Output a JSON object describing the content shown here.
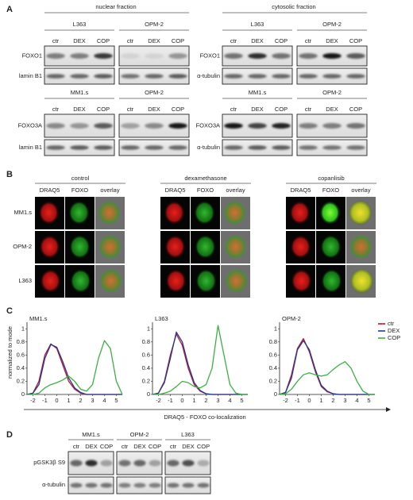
{
  "panel_a": {
    "label": "A",
    "fractions": [
      {
        "title": "nuclear fraction",
        "rows": [
          {
            "cell_lines": [
              "L363",
              "OPM-2"
            ],
            "lanes": [
              [
                "ctr",
                "DEX",
                "COP"
              ],
              [
                "ctr",
                "DEX",
                "COP"
              ]
            ],
            "proteins": [
              "FOXO1",
              "lamin B1"
            ]
          },
          {
            "cell_lines": [
              "MM1.s",
              "OPM-2"
            ],
            "lanes": [
              [
                "ctr",
                "DEX",
                "COP"
              ],
              [
                "ctr",
                "DEX",
                "COP"
              ]
            ],
            "proteins": [
              "FOXO3A",
              "lamin B1"
            ]
          }
        ]
      },
      {
        "title": "cytosolic fraction",
        "rows": [
          {
            "cell_lines": [
              "L363",
              "OPM-2"
            ],
            "lanes": [
              [
                "ctr",
                "DEX",
                "COP"
              ],
              [
                "ctr",
                "DEX",
                "COP"
              ]
            ],
            "proteins": [
              "FOXO1",
              "α-tubulin"
            ]
          },
          {
            "cell_lines": [
              "MM1.s",
              "OPM-2"
            ],
            "lanes": [
              [
                "ctr",
                "DEX",
                "COP"
              ],
              [
                "ctr",
                "DEX",
                "COP"
              ]
            ],
            "proteins": [
              "FOXO3A",
              "α-tubulin"
            ]
          }
        ]
      }
    ]
  },
  "panel_b": {
    "label": "B",
    "conditions": [
      {
        "title": "control",
        "channels": [
          "DRAQ5",
          "FOXO",
          "overlay"
        ]
      },
      {
        "title": "dexamethasone",
        "channels": [
          "DRAQ5",
          "FOXO",
          "overlay"
        ]
      },
      {
        "title": "copanlisib",
        "channels": [
          "DRAQ5",
          "FOXO",
          "overlay"
        ]
      }
    ],
    "cell_lines": [
      "MM1.s",
      "OPM-2",
      "L363"
    ]
  },
  "panel_c": {
    "label": "C",
    "y_label": "normalized to mode",
    "x_label": "DRAQ5 - FOXO co-localization"
  },
  "chart_data": [
    {
      "type": "line",
      "title": "MM1.s",
      "x": [
        -2.5,
        -2,
        -1.5,
        -1,
        -0.5,
        0,
        0.5,
        1,
        1.5,
        2,
        2.5,
        3,
        3.5,
        4,
        4.5,
        5,
        5.5
      ],
      "xlim": [
        -2.5,
        5.5
      ],
      "xticks": [
        -2,
        -1,
        0,
        1,
        2,
        3,
        4,
        5
      ],
      "ylim": [
        0,
        1.1
      ],
      "yticks": [
        0,
        0.2,
        0.4,
        0.6,
        0.8,
        1
      ],
      "series": [
        {
          "color": "#c8102e",
          "values": [
            0,
            0.02,
            0.2,
            0.6,
            0.77,
            0.7,
            0.45,
            0.2,
            0.08,
            0.02,
            0,
            0,
            0,
            0,
            0,
            0,
            0
          ]
        },
        {
          "color": "#1f3a93",
          "values": [
            0,
            0.02,
            0.15,
            0.55,
            0.76,
            0.72,
            0.5,
            0.25,
            0.1,
            0.03,
            0,
            0,
            0,
            0,
            0,
            0,
            0
          ]
        },
        {
          "color": "#3cb043",
          "values": [
            0,
            0,
            0.02,
            0.1,
            0.15,
            0.18,
            0.22,
            0.28,
            0.2,
            0.08,
            0.05,
            0.15,
            0.55,
            0.82,
            0.7,
            0.2,
            0
          ]
        }
      ]
    },
    {
      "type": "line",
      "title": "L363",
      "x": [
        -2.5,
        -2,
        -1.5,
        -1,
        -0.5,
        0,
        0.5,
        1,
        1.5,
        2,
        2.5,
        3,
        3.5,
        4,
        4.5,
        5,
        5.5
      ],
      "xlim": [
        -2.5,
        5.5
      ],
      "xticks": [
        -2,
        -1,
        0,
        1,
        2,
        3,
        4,
        5
      ],
      "ylim": [
        0,
        1.1
      ],
      "yticks": [
        0,
        0.2,
        0.4,
        0.6,
        0.8,
        1
      ],
      "series": [
        {
          "color": "#c8102e",
          "values": [
            0,
            0.02,
            0.2,
            0.6,
            0.92,
            0.75,
            0.4,
            0.15,
            0.05,
            0.01,
            0,
            0,
            0,
            0,
            0,
            0,
            0
          ]
        },
        {
          "color": "#1f3a93",
          "values": [
            0,
            0.02,
            0.18,
            0.55,
            0.95,
            0.8,
            0.45,
            0.18,
            0.06,
            0.01,
            0,
            0,
            0,
            0,
            0,
            0,
            0
          ]
        },
        {
          "color": "#3cb043",
          "values": [
            0,
            0,
            0.02,
            0.05,
            0.12,
            0.2,
            0.18,
            0.12,
            0.1,
            0.15,
            0.4,
            1.05,
            0.6,
            0.15,
            0.02,
            0,
            0
          ]
        }
      ]
    },
    {
      "type": "line",
      "title": "OPM-2",
      "x": [
        -2.5,
        -2,
        -1.5,
        -1,
        -0.5,
        0,
        0.5,
        1,
        1.5,
        2,
        2.5,
        3,
        3.5,
        4,
        4.5,
        5,
        5.5
      ],
      "xlim": [
        -2.5,
        5.5
      ],
      "xticks": [
        -2,
        -1,
        0,
        1,
        2,
        3,
        4,
        5
      ],
      "ylim": [
        0,
        1.1
      ],
      "yticks": [
        0,
        0.2,
        0.4,
        0.6,
        0.8,
        1
      ],
      "legend": "upper right",
      "series": [
        {
          "name": "ctr",
          "color": "#c8102e",
          "values": [
            0,
            0.03,
            0.3,
            0.7,
            0.85,
            0.65,
            0.35,
            0.12,
            0.04,
            0.01,
            0,
            0,
            0,
            0,
            0,
            0,
            0
          ]
        },
        {
          "name": "DEX",
          "color": "#1f3a93",
          "values": [
            0,
            0.03,
            0.25,
            0.68,
            0.82,
            0.68,
            0.38,
            0.14,
            0.05,
            0.01,
            0,
            0,
            0,
            0,
            0,
            0,
            0
          ]
        },
        {
          "name": "COP",
          "color": "#3cb043",
          "values": [
            0,
            0.01,
            0.08,
            0.2,
            0.3,
            0.33,
            0.3,
            0.28,
            0.3,
            0.38,
            0.45,
            0.5,
            0.4,
            0.2,
            0.05,
            0,
            0
          ]
        }
      ]
    }
  ],
  "panel_d": {
    "label": "D",
    "cell_lines": [
      "MM1.s",
      "OPM-2",
      "L363"
    ],
    "lanes": [
      [
        "ctr",
        "DEX",
        "COP"
      ],
      [
        "ctr",
        "DEX",
        "COP"
      ],
      [
        "ctr",
        "DEX",
        "COP"
      ]
    ],
    "proteins": [
      "pGSK3β S9",
      "α-tubulin"
    ]
  }
}
